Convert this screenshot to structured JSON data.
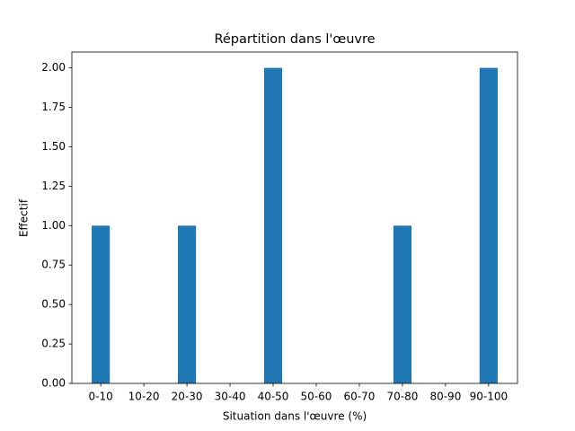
{
  "chart_data": {
    "type": "bar",
    "title": "Répartition dans l'œuvre",
    "x_label": "Situation dans l'œuvre (%)",
    "y_label": "Effectif",
    "categories": [
      "0-10",
      "10-20",
      "20-30",
      "30-40",
      "40-50",
      "50-60",
      "60-70",
      "70-80",
      "80-90",
      "90-100"
    ],
    "values": [
      1,
      0,
      1,
      0,
      2,
      0,
      0,
      1,
      0,
      2
    ],
    "color": "#1f77b4",
    "ylim": [
      0,
      2.1
    ],
    "yticks": [
      {
        "value": 0,
        "label": "0.00"
      },
      {
        "value": 0.25,
        "label": "0.25"
      },
      {
        "value": 0.5,
        "label": "0.50"
      },
      {
        "value": 0.75,
        "label": "0.75"
      },
      {
        "value": 1,
        "label": "1.00"
      },
      {
        "value": 1.25,
        "label": "1.25"
      },
      {
        "value": 1.5,
        "label": "1.50"
      },
      {
        "value": 1.75,
        "label": "1.75"
      },
      {
        "value": 2,
        "label": "2.00"
      }
    ],
    "grid": false
  }
}
